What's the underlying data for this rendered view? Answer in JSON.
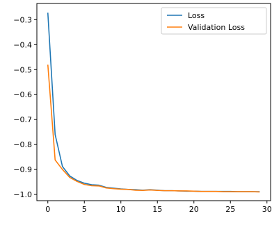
{
  "chart_data": {
    "type": "line",
    "title": "",
    "xlabel": "",
    "ylabel": "",
    "xlim": [
      -1.5,
      30.5
    ],
    "ylim": [
      -1.025,
      -0.235
    ],
    "x_ticks": [
      0,
      5,
      10,
      15,
      20,
      25,
      30
    ],
    "x_tick_labels": [
      "0",
      "5",
      "10",
      "15",
      "20",
      "25",
      "30"
    ],
    "y_ticks": [
      -0.3,
      -0.4,
      -0.5,
      -0.6,
      -0.7,
      -0.8,
      -0.9,
      -1.0
    ],
    "y_tick_labels": [
      "−0.3",
      "−0.4",
      "−0.5",
      "−0.6",
      "−0.7",
      "−0.8",
      "−0.9",
      "−1.0"
    ],
    "grid": false,
    "legend_position": "top-right",
    "x": [
      0,
      1,
      2,
      3,
      4,
      5,
      6,
      7,
      8,
      9,
      10,
      11,
      12,
      13,
      14,
      15,
      16,
      17,
      18,
      19,
      20,
      21,
      22,
      23,
      24,
      25,
      26,
      27,
      28,
      29
    ],
    "series": [
      {
        "name": "Loss",
        "color": "#1f77b4",
        "values": [
          -0.272,
          -0.76,
          -0.888,
          -0.926,
          -0.944,
          -0.955,
          -0.961,
          -0.963,
          -0.972,
          -0.975,
          -0.978,
          -0.98,
          -0.981,
          -0.983,
          -0.981,
          -0.983,
          -0.985,
          -0.985,
          -0.986,
          -0.987,
          -0.987,
          -0.988,
          -0.988,
          -0.988,
          -0.988,
          -0.988,
          -0.989,
          -0.989,
          -0.989,
          -0.989
        ]
      },
      {
        "name": "Validation Loss",
        "color": "#ff7f0e",
        "values": [
          -0.48,
          -0.862,
          -0.9,
          -0.932,
          -0.948,
          -0.96,
          -0.965,
          -0.966,
          -0.974,
          -0.977,
          -0.979,
          -0.98,
          -0.983,
          -0.984,
          -0.982,
          -0.984,
          -0.985,
          -0.985,
          -0.986,
          -0.986,
          -0.987,
          -0.988,
          -0.988,
          -0.988,
          -0.989,
          -0.989,
          -0.989,
          -0.989,
          -0.989,
          -0.99
        ]
      }
    ]
  }
}
